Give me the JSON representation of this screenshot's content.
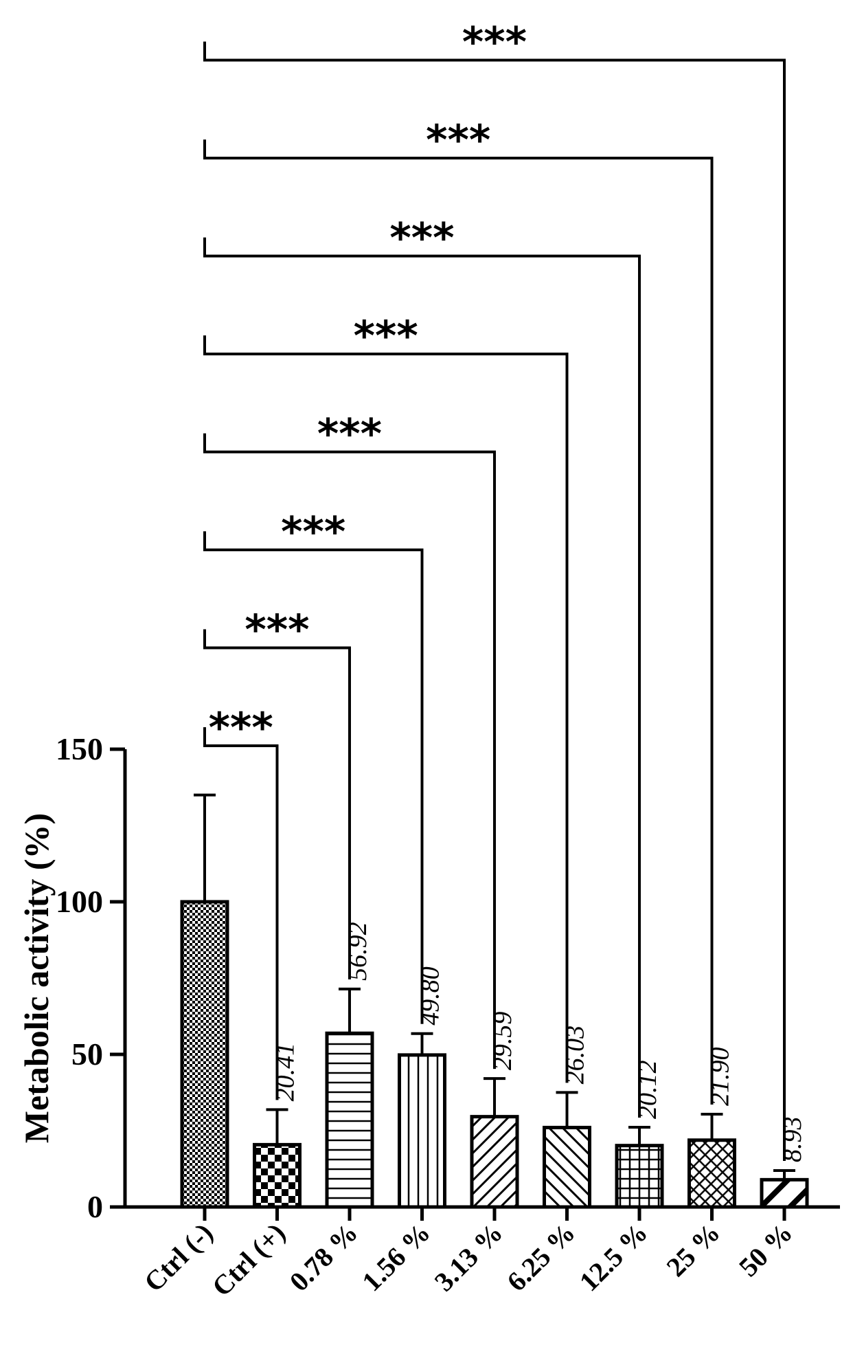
{
  "chart_data": {
    "type": "bar",
    "title": "",
    "xlabel": "",
    "ylabel": "Metabolic activity (%)",
    "ylim": [
      0,
      150
    ],
    "yticks": [
      0,
      50,
      100,
      150
    ],
    "categories": [
      "Ctrl (-)",
      "Ctrl (+)",
      "0.78 %",
      "1.56 %",
      "3.13 %",
      "6.25 %",
      "12.5 %",
      "25 %",
      "50 %"
    ],
    "values": [
      100,
      20.41,
      56.92,
      49.8,
      29.59,
      26.03,
      20.12,
      21.9,
      8.93
    ],
    "errors": [
      35,
      11.5,
      14.5,
      7,
      12.5,
      11.5,
      6,
      8.5,
      3
    ],
    "value_labels": [
      "",
      "20.41",
      "56.92",
      "49.80",
      "29.59",
      "26.03",
      "20.12",
      "21.90",
      "8.93"
    ],
    "patterns": [
      "fine-checker",
      "checker",
      "horizontal",
      "vertical",
      "diagonal-up",
      "diagonal-down",
      "grid",
      "crosshatch",
      "wide-diagonal"
    ],
    "bar_color": "#000000",
    "grid": false,
    "comparisons": [
      {
        "from": "Ctrl (-)",
        "to": "Ctrl (+)",
        "label": "***"
      },
      {
        "from": "Ctrl (-)",
        "to": "0.78 %",
        "label": "***"
      },
      {
        "from": "Ctrl (-)",
        "to": "1.56 %",
        "label": "***"
      },
      {
        "from": "Ctrl (-)",
        "to": "3.13 %",
        "label": "***"
      },
      {
        "from": "Ctrl (-)",
        "to": "6.25 %",
        "label": "***"
      },
      {
        "from": "Ctrl (-)",
        "to": "12.5 %",
        "label": "***"
      },
      {
        "from": "Ctrl (-)",
        "to": "25 %",
        "label": "***"
      },
      {
        "from": "Ctrl (-)",
        "to": "50 %",
        "label": "***"
      }
    ]
  }
}
